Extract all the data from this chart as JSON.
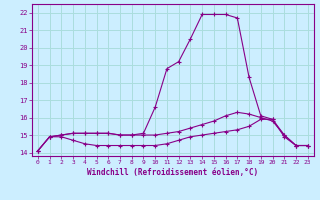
{
  "xlabel": "Windchill (Refroidissement éolien,°C)",
  "background_color": "#cceeff",
  "grid_color": "#aadddd",
  "line_color": "#880088",
  "x_ticks": [
    0,
    1,
    2,
    3,
    4,
    5,
    6,
    7,
    8,
    9,
    10,
    11,
    12,
    13,
    14,
    15,
    16,
    17,
    18,
    19,
    20,
    21,
    22,
    23
  ],
  "y_ticks": [
    14,
    15,
    16,
    17,
    18,
    19,
    20,
    21,
    22
  ],
  "ylim": [
    13.8,
    22.5
  ],
  "xlim": [
    -0.5,
    23.5
  ],
  "line1_y": [
    14.1,
    14.9,
    14.9,
    14.7,
    14.5,
    14.4,
    14.4,
    14.4,
    14.4,
    14.4,
    14.4,
    14.5,
    14.7,
    14.9,
    15.0,
    15.1,
    15.2,
    15.3,
    15.5,
    15.9,
    15.9,
    14.9,
    14.4,
    14.4
  ],
  "line2_y": [
    14.1,
    14.9,
    15.0,
    15.1,
    15.1,
    15.1,
    15.1,
    15.0,
    15.0,
    15.0,
    15.0,
    15.1,
    15.2,
    15.4,
    15.6,
    15.8,
    16.1,
    16.3,
    16.2,
    16.0,
    15.8,
    15.0,
    14.4,
    14.4
  ],
  "line3_y": [
    14.1,
    14.9,
    15.0,
    15.1,
    15.1,
    15.1,
    15.1,
    15.0,
    15.0,
    15.1,
    16.6,
    18.8,
    19.2,
    20.5,
    21.9,
    21.9,
    21.9,
    21.7,
    18.3,
    16.1,
    15.9,
    15.0,
    14.4,
    14.4
  ]
}
